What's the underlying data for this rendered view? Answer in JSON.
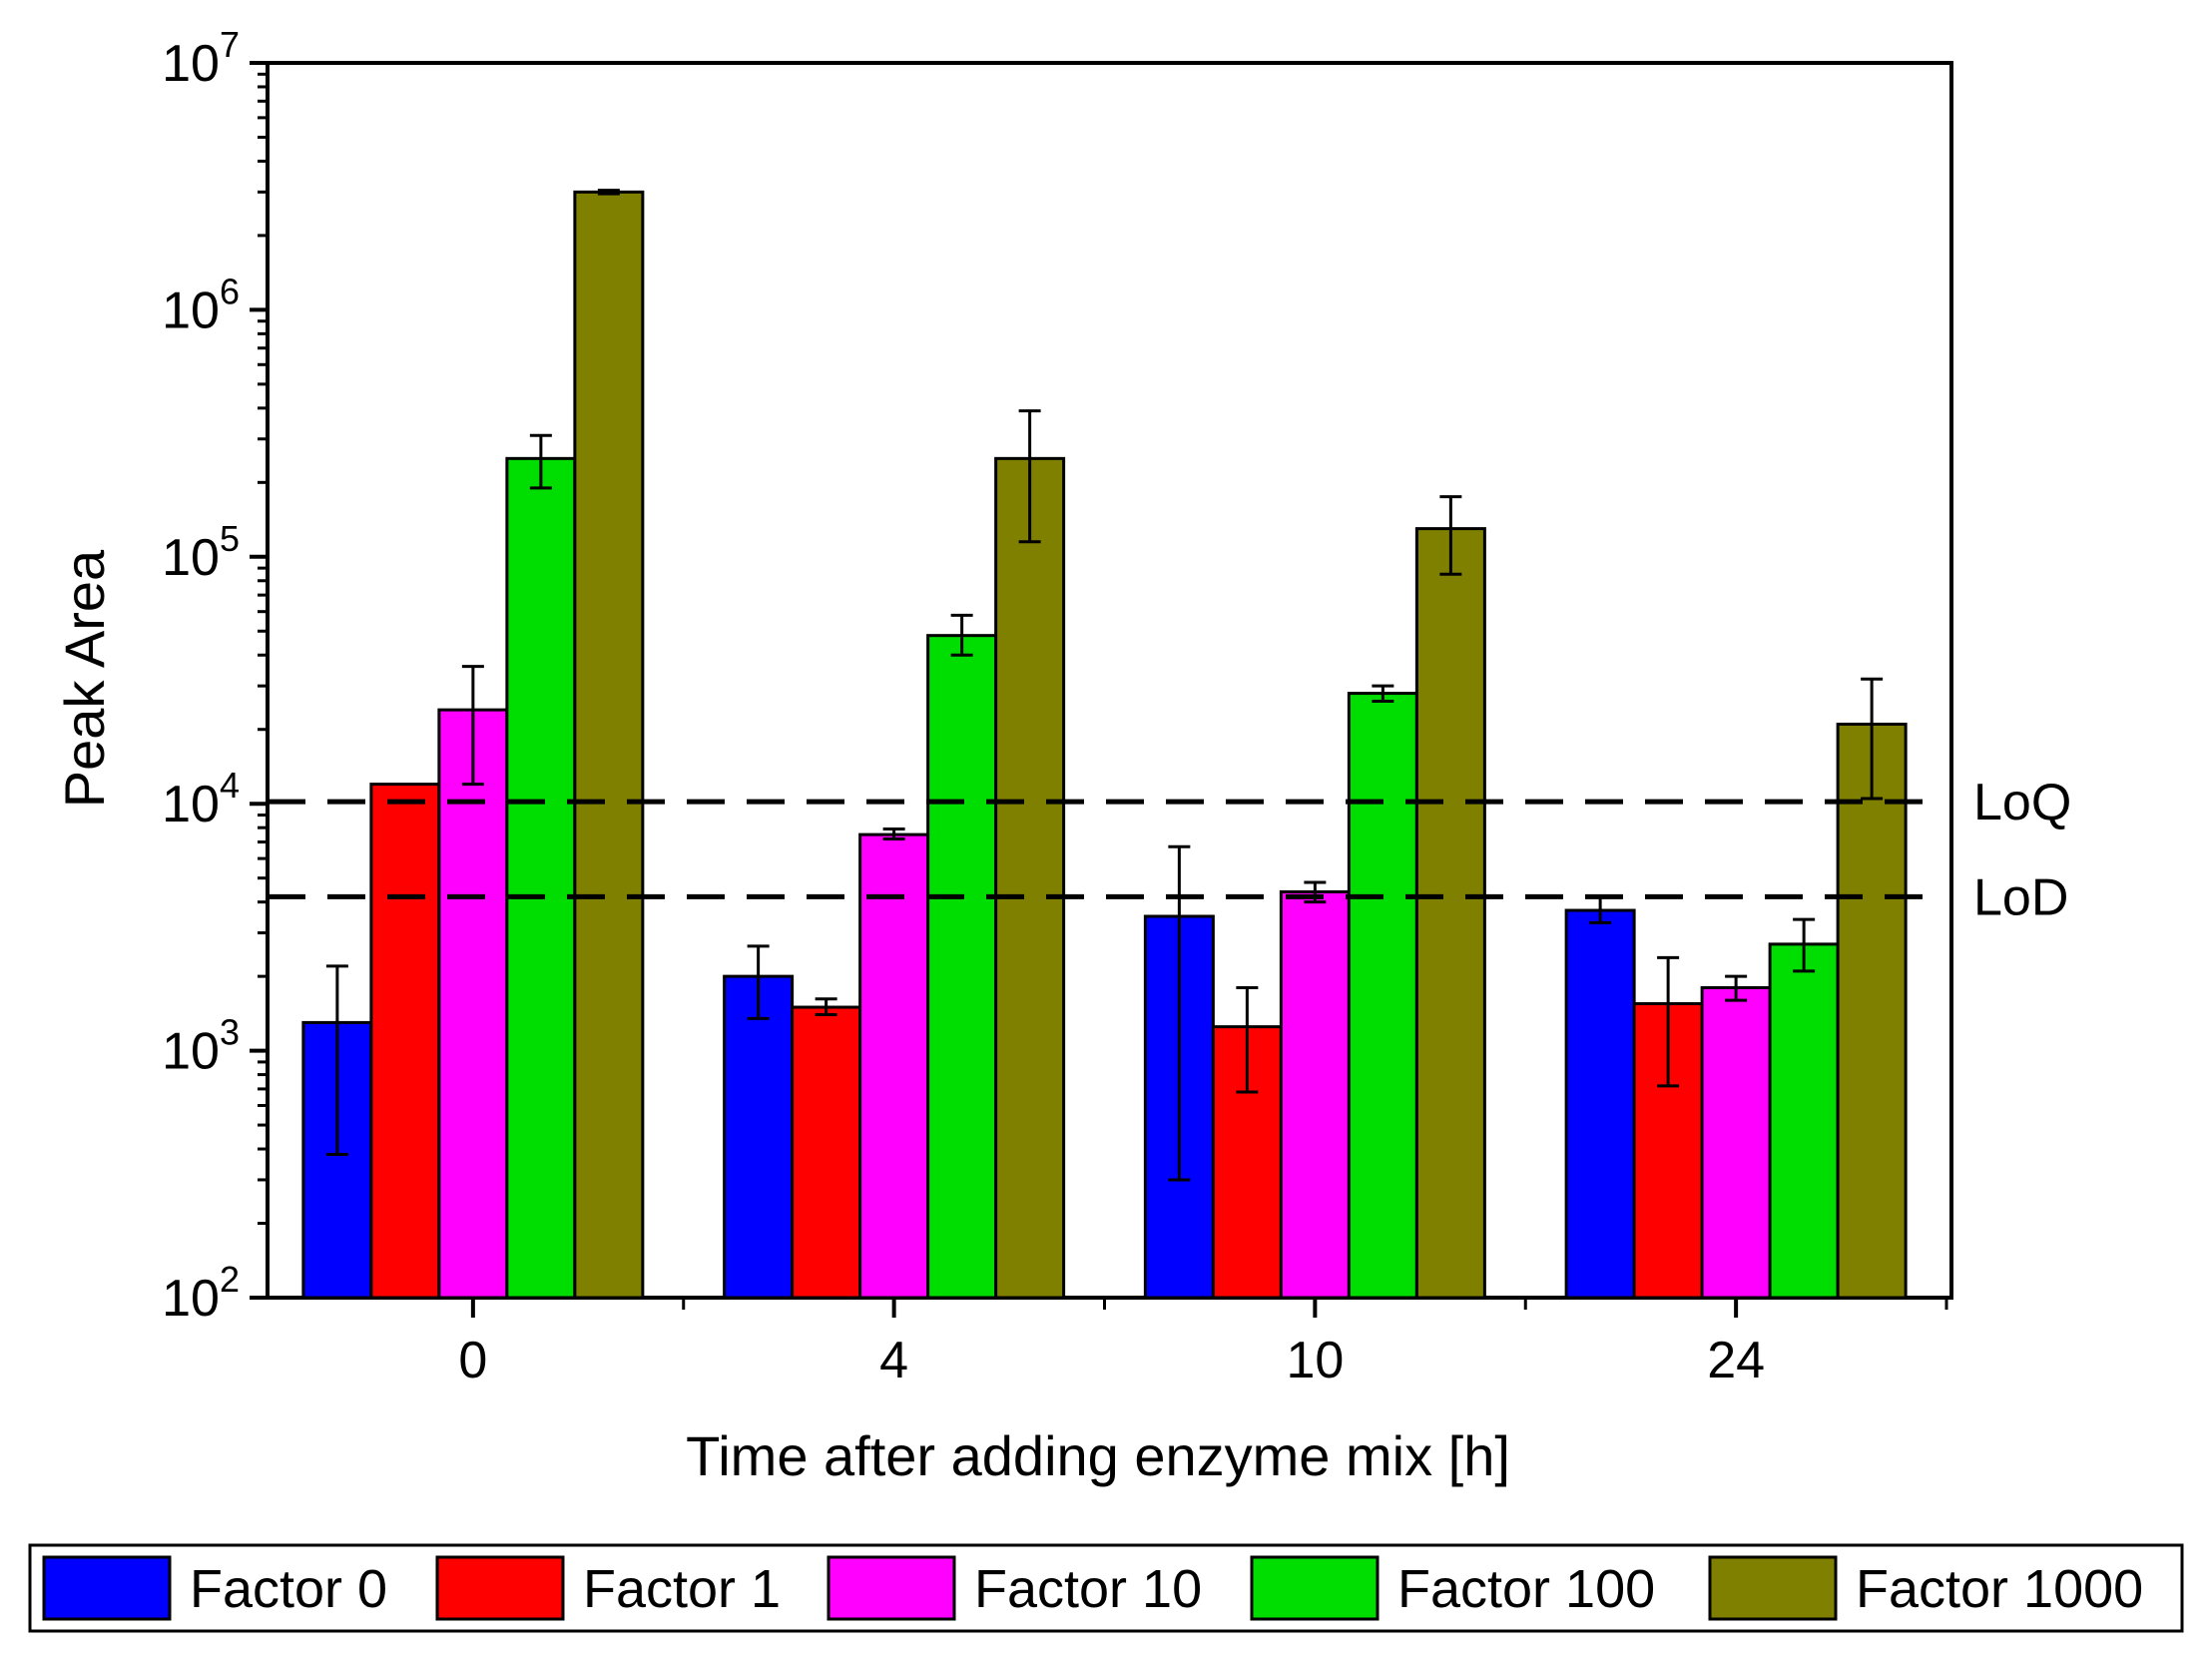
{
  "chart_data": {
    "type": "bar",
    "title": "",
    "xlabel": "Time after adding enzyme mix [h]",
    "ylabel": "Peak Area",
    "yscale": "log",
    "ylim": [
      100,
      10000000
    ],
    "y_ticks": [
      {
        "value": 100,
        "base": "10",
        "exp": "2"
      },
      {
        "value": 1000,
        "base": "10",
        "exp": "3"
      },
      {
        "value": 10000,
        "base": "10",
        "exp": "4"
      },
      {
        "value": 100000,
        "base": "10",
        "exp": "5"
      },
      {
        "value": 1000000,
        "base": "10",
        "exp": "6"
      },
      {
        "value": 10000000,
        "base": "10",
        "exp": "7"
      }
    ],
    "categories": [
      "0",
      "4",
      "10",
      "24"
    ],
    "series": [
      {
        "name": "Factor 0",
        "color": "#0000ff",
        "values": [
          1300,
          2000,
          3500,
          3700
        ],
        "err_low": [
          380,
          1350,
          300,
          3300
        ],
        "err_high": [
          2200,
          2650,
          6700,
          4200
        ]
      },
      {
        "name": "Factor 1",
        "color": "#ff0000",
        "values": [
          12000,
          1500,
          1250,
          1550
        ],
        "err_low": [
          null,
          1400,
          680,
          720
        ],
        "err_high": [
          null,
          1620,
          1800,
          2380
        ]
      },
      {
        "name": "Factor 10",
        "color": "#ff00ff",
        "values": [
          24000,
          7500,
          4400,
          1800
        ],
        "err_low": [
          12000,
          7200,
          4000,
          1600
        ],
        "err_high": [
          36000,
          7900,
          4800,
          2000
        ]
      },
      {
        "name": "Factor 100",
        "color": "#00dd00",
        "values": [
          250000,
          48000,
          28000,
          2700
        ],
        "err_low": [
          190000,
          40000,
          26000,
          2100
        ],
        "err_high": [
          310000,
          58000,
          30000,
          3400
        ]
      },
      {
        "name": "Factor 1000",
        "color": "#808000",
        "values": [
          3000000,
          250000,
          130000,
          21000
        ],
        "err_low": [
          2950000,
          115000,
          85000,
          10500
        ],
        "err_high": [
          3050000,
          390000,
          175000,
          32000
        ]
      }
    ],
    "reference_lines": [
      {
        "label": "LoQ",
        "value": 10200
      },
      {
        "label": "LoD",
        "value": 4200
      }
    ],
    "legend": {
      "placement": "bottom",
      "style": "boxed-row"
    }
  }
}
